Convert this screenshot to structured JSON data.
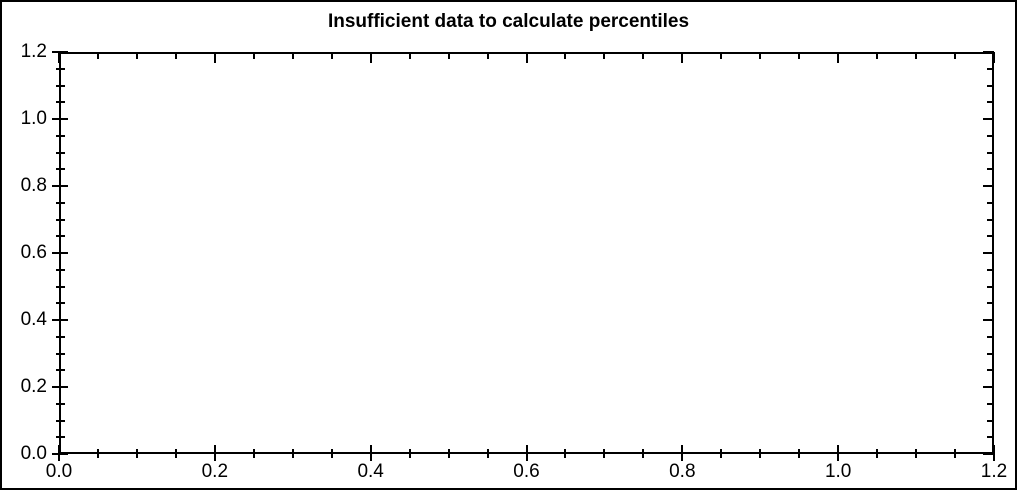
{
  "chart_data": {
    "type": "scatter",
    "title": "Insufficient data to calculate percentiles",
    "xlabel": "",
    "ylabel": "",
    "xlim": [
      0.0,
      1.2
    ],
    "ylim": [
      0.0,
      1.2
    ],
    "grid": false,
    "series": [],
    "xticks": {
      "major_values": [
        0.0,
        0.2,
        0.4,
        0.6,
        0.8,
        1.0,
        1.2
      ],
      "major_labels": [
        "0.0",
        "0.2",
        "0.4",
        "0.6",
        "0.8",
        "1.0",
        "1.2"
      ],
      "minor_step": 0.05
    },
    "yticks": {
      "major_values": [
        0.0,
        0.2,
        0.4,
        0.6,
        0.8,
        1.0,
        1.2
      ],
      "major_labels": [
        "0.0",
        "0.2",
        "0.4",
        "0.6",
        "0.8",
        "1.0",
        "1.2"
      ],
      "minor_step": 0.05
    },
    "colors": {
      "axis": "#000000",
      "text": "#000000",
      "background": "#ffffff",
      "frame": "#000000"
    }
  }
}
